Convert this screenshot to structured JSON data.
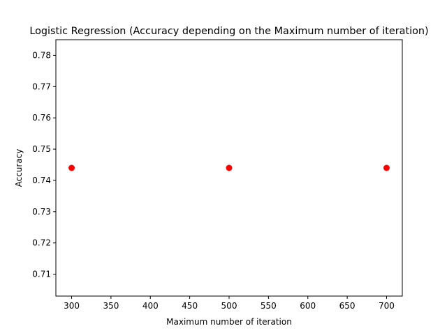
{
  "chart_data": {
    "type": "scatter",
    "title": "Logistic Regression (Accuracy depending on the Maximum number of iteration)",
    "xlabel": "Maximum number of iteration",
    "ylabel": "Accuracy",
    "x_ticks": [
      300,
      350,
      400,
      450,
      500,
      550,
      600,
      650,
      700
    ],
    "y_ticks": [
      0.71,
      0.72,
      0.73,
      0.74,
      0.75,
      0.76,
      0.77,
      0.78
    ],
    "xlim": [
      280,
      720
    ],
    "ylim": [
      0.703,
      0.785
    ],
    "grid": false,
    "series": [
      {
        "x": [
          300,
          500,
          700
        ],
        "y": [
          0.744,
          0.744,
          0.744
        ],
        "color": "#ff0000"
      }
    ]
  }
}
